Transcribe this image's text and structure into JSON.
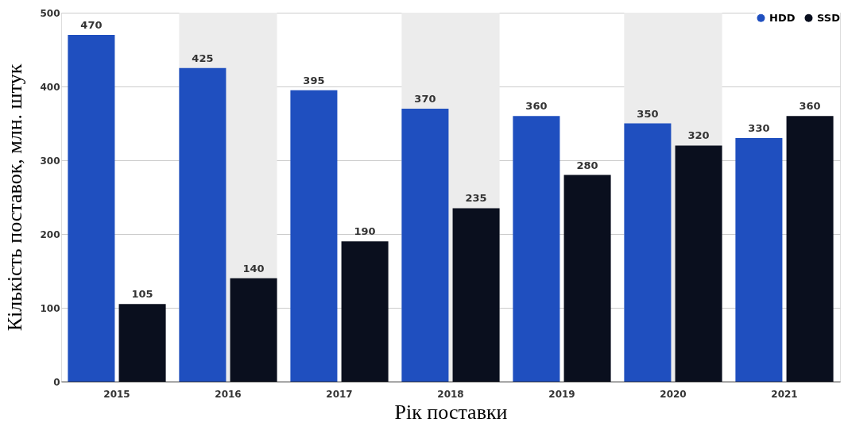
{
  "chart_data": {
    "type": "bar",
    "xlabel": "Рік поставки",
    "ylabel": "Кількість поставок, млн. штук",
    "categories": [
      "2015",
      "2016",
      "2017",
      "2018",
      "2019",
      "2020",
      "2021"
    ],
    "series": [
      {
        "name": "HDD",
        "color": "#1f4fbf",
        "values": [
          470,
          425,
          395,
          370,
          360,
          350,
          330
        ]
      },
      {
        "name": "SSD",
        "color": "#0a0f1e",
        "values": [
          105,
          140,
          190,
          235,
          280,
          320,
          360
        ]
      }
    ],
    "ylim": [
      0,
      500
    ],
    "yticks": [
      0,
      100,
      200,
      300,
      400,
      500
    ],
    "grid": "y",
    "legend": "top right",
    "data_labels": true,
    "bands": [
      {
        "axis": "x",
        "from": "2016",
        "to": "2016",
        "color": "#ececec"
      },
      {
        "axis": "x",
        "from": "2018",
        "to": "2018",
        "color": "#ececec"
      },
      {
        "axis": "x",
        "from": "2020",
        "to": "2020",
        "color": "#ececec"
      }
    ]
  }
}
